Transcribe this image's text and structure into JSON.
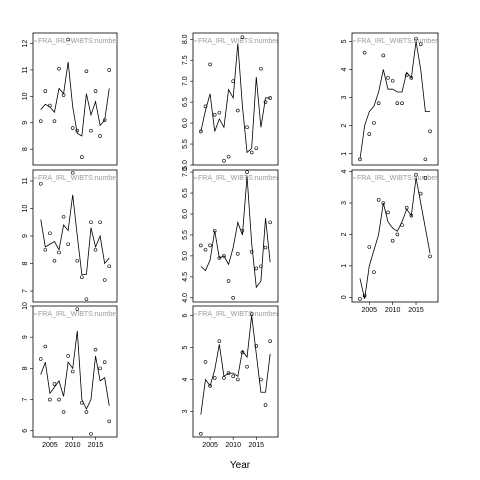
{
  "xlabel": "Year",
  "chart_data": [
    {
      "type": "line",
      "label": "FRA_IRL_WIBTS:numbers",
      "xlim": [
        2001.3,
        2019.7
      ],
      "ylim": [
        7.4,
        12.4
      ],
      "yticks": [
        8,
        9,
        10,
        11,
        12
      ],
      "x": [
        2003,
        2004,
        2005,
        2006,
        2007,
        2008,
        2009,
        2010,
        2011,
        2012,
        2013,
        2014,
        2015,
        2016,
        2017,
        2018
      ],
      "points": [
        9.06,
        10.2,
        9.65,
        9.06,
        11.05,
        10.05,
        12.15,
        8.8,
        8.7,
        7.7,
        10.95,
        8.7,
        10.2,
        8.5,
        9.1,
        11.0
      ],
      "line": [
        9.5,
        9.7,
        9.6,
        9.4,
        10.3,
        10.1,
        11.3,
        9.6,
        8.6,
        8.5,
        10.1,
        9.3,
        9.8,
        8.9,
        9.1,
        10.3
      ]
    },
    {
      "type": "line",
      "label": "FRA_IRL_WIBTS:numbers",
      "xlim": [
        2001.3,
        2019.7
      ],
      "ylim": [
        5.0,
        8.15
      ],
      "yticks": [
        {
          "value": 5,
          "label": "5.0"
        },
        {
          "value": 5.5,
          "label": "5.5"
        },
        {
          "value": 6,
          "label": "6.0"
        },
        {
          "value": 6.5,
          "label": "6.5"
        },
        {
          "value": 7,
          "label": "7.0"
        },
        {
          "value": 7.5,
          "label": "7.5"
        },
        {
          "value": 8,
          "label": "8.0"
        }
      ],
      "x": [
        2003,
        2004,
        2005,
        2006,
        2007,
        2008,
        2009,
        2010,
        2011,
        2012,
        2013,
        2014,
        2015,
        2016,
        2017,
        2018
      ],
      "points": [
        5.8,
        6.4,
        7.4,
        6.2,
        6.25,
        5.1,
        5.2,
        7.0,
        6.3,
        8.05,
        5.9,
        5.3,
        5.4,
        7.3,
        6.5,
        6.6
      ],
      "line": [
        5.8,
        6.3,
        6.7,
        5.8,
        6.1,
        5.9,
        6.8,
        6.6,
        7.9,
        6.4,
        5.3,
        5.4,
        7.1,
        5.9,
        6.6,
        6.6
      ]
    },
    {
      "type": "line",
      "label": "FRA_IRL_WIBTS:numbers",
      "xlim": [
        2001.3,
        2019.7
      ],
      "ylim": [
        0.6,
        5.3
      ],
      "yticks": [
        1,
        2,
        3,
        4,
        5
      ],
      "x": [
        2003,
        2004,
        2005,
        2006,
        2007,
        2008,
        2009,
        2010,
        2011,
        2012,
        2013,
        2014,
        2015,
        2016,
        2017,
        2018
      ],
      "points": [
        0.8,
        4.6,
        1.7,
        2.1,
        2.8,
        4.5,
        3.7,
        3.6,
        2.8,
        2.8,
        3.8,
        3.7,
        5.1,
        4.9,
        0.8,
        1.8
      ],
      "line": [
        0.8,
        2.0,
        2.5,
        2.7,
        3.2,
        4.0,
        3.3,
        3.3,
        3.2,
        3.2,
        3.9,
        3.7,
        5.0,
        4.0,
        2.5,
        2.5
      ]
    },
    {
      "type": "line",
      "label": "FRA_IRL_WIBTS:numbers",
      "xlim": [
        2001.3,
        2019.7
      ],
      "ylim": [
        6.6,
        11.4
      ],
      "yticks": [
        7,
        8,
        9,
        10,
        11
      ],
      "x": [
        2003,
        2004,
        2005,
        2006,
        2007,
        2008,
        2009,
        2010,
        2011,
        2012,
        2013,
        2014,
        2015,
        2016,
        2017,
        2018
      ],
      "points": [
        10.9,
        8.5,
        9.1,
        8.1,
        8.4,
        9.7,
        8.7,
        11.3,
        8.1,
        7.5,
        6.7,
        9.5,
        8.5,
        9.5,
        7.4,
        7.9
      ],
      "line": [
        9.6,
        8.6,
        8.7,
        8.8,
        8.5,
        9.4,
        9.2,
        10.5,
        9.0,
        7.6,
        7.6,
        9.3,
        8.6,
        9.0,
        8.0,
        8.2
      ]
    },
    {
      "type": "line",
      "label": "FRA_IRL_WIBTS:numbers",
      "xlim": [
        2001.3,
        2019.7
      ],
      "ylim": [
        3.9,
        7.05
      ],
      "yticks": [
        {
          "value": 4,
          "label": "4.0"
        },
        {
          "value": 4.5,
          "label": "4.5"
        },
        {
          "value": 5,
          "label": "5.0"
        },
        {
          "value": 5.5,
          "label": "5.5"
        },
        {
          "value": 6,
          "label": "6.0"
        },
        {
          "value": 6.5,
          "label": "6.5"
        },
        {
          "value": 7,
          "label": "7.0"
        }
      ],
      "x": [
        2003,
        2004,
        2005,
        2006,
        2007,
        2008,
        2009,
        2010,
        2011,
        2012,
        2013,
        2014,
        2015,
        2016,
        2017,
        2018
      ],
      "points": [
        5.25,
        5.15,
        5.25,
        5.6,
        4.95,
        5.0,
        4.4,
        4.0,
        5.05,
        5.6,
        7.0,
        5.1,
        4.7,
        4.75,
        5.2,
        5.8
      ],
      "line": [
        4.75,
        4.65,
        4.9,
        5.6,
        4.95,
        5.0,
        4.8,
        5.2,
        5.8,
        5.5,
        6.9,
        5.3,
        4.25,
        4.4,
        5.9,
        4.85
      ]
    },
    {
      "type": "line",
      "label": "FRA_IRL_WIBTS:numbers",
      "xlim": [
        2001.3,
        2019.7
      ],
      "ylim": [
        -0.15,
        4.05
      ],
      "yticks": [
        0,
        1,
        2,
        3,
        4
      ],
      "xticks": [
        2005,
        2010,
        2015
      ],
      "x": [
        2003,
        2004,
        2005,
        2006,
        2007,
        2008,
        2009,
        2010,
        2011,
        2012,
        2013,
        2014,
        2015,
        2016,
        2017,
        2018
      ],
      "points": [
        -0.05,
        0.05,
        1.6,
        0.8,
        3.1,
        3.0,
        2.7,
        1.8,
        2.0,
        2.3,
        2.85,
        2.6,
        3.9,
        3.3,
        3.8,
        1.3
      ],
      "line": [
        0.6,
        -0.05,
        1.0,
        1.5,
        2.0,
        3.0,
        2.4,
        2.2,
        2.1,
        2.4,
        2.8,
        2.6,
        3.8,
        3.0,
        2.2,
        1.4
      ]
    },
    {
      "type": "line",
      "label": "FRA_IRL_WIBTS:numbers",
      "xlim": [
        2001.3,
        2019.7
      ],
      "ylim": [
        5.8,
        10.0
      ],
      "yticks": [
        6,
        7,
        8,
        9,
        10
      ],
      "xticks": [
        2005,
        2010,
        2015
      ],
      "x": [
        2003,
        2004,
        2005,
        2006,
        2007,
        2008,
        2009,
        2010,
        2011,
        2012,
        2013,
        2014,
        2015,
        2016,
        2017,
        2018
      ],
      "points": [
        8.3,
        8.7,
        7.0,
        7.5,
        7.0,
        6.6,
        8.4,
        7.9,
        9.9,
        6.9,
        6.6,
        5.9,
        8.6,
        8.0,
        8.2,
        6.3
      ],
      "line": [
        7.8,
        8.2,
        7.2,
        7.4,
        7.6,
        7.1,
        8.2,
        8.0,
        9.2,
        7.0,
        6.7,
        7.0,
        8.4,
        7.6,
        7.7,
        6.8
      ]
    },
    {
      "type": "line",
      "label": "FRA_IRL_WIBTS:numbers",
      "xlim": [
        2001.3,
        2019.7
      ],
      "ylim": [
        2.2,
        6.3
      ],
      "yticks": [
        3,
        4,
        5,
        6
      ],
      "xticks": [
        2005,
        2010,
        2015
      ],
      "x": [
        2003,
        2004,
        2005,
        2006,
        2007,
        2008,
        2009,
        2010,
        2011,
        2012,
        2013,
        2014,
        2015,
        2016,
        2017,
        2018
      ],
      "points": [
        2.3,
        4.55,
        3.8,
        4.05,
        5.2,
        4.05,
        4.2,
        4.1,
        4.0,
        4.85,
        4.4,
        6.05,
        5.05,
        4.0,
        3.2,
        5.2
      ],
      "line": [
        2.9,
        4.0,
        3.8,
        4.3,
        5.1,
        4.1,
        4.2,
        4.2,
        4.1,
        4.9,
        4.7,
        6.0,
        4.8,
        3.6,
        3.6,
        4.8
      ]
    }
  ]
}
